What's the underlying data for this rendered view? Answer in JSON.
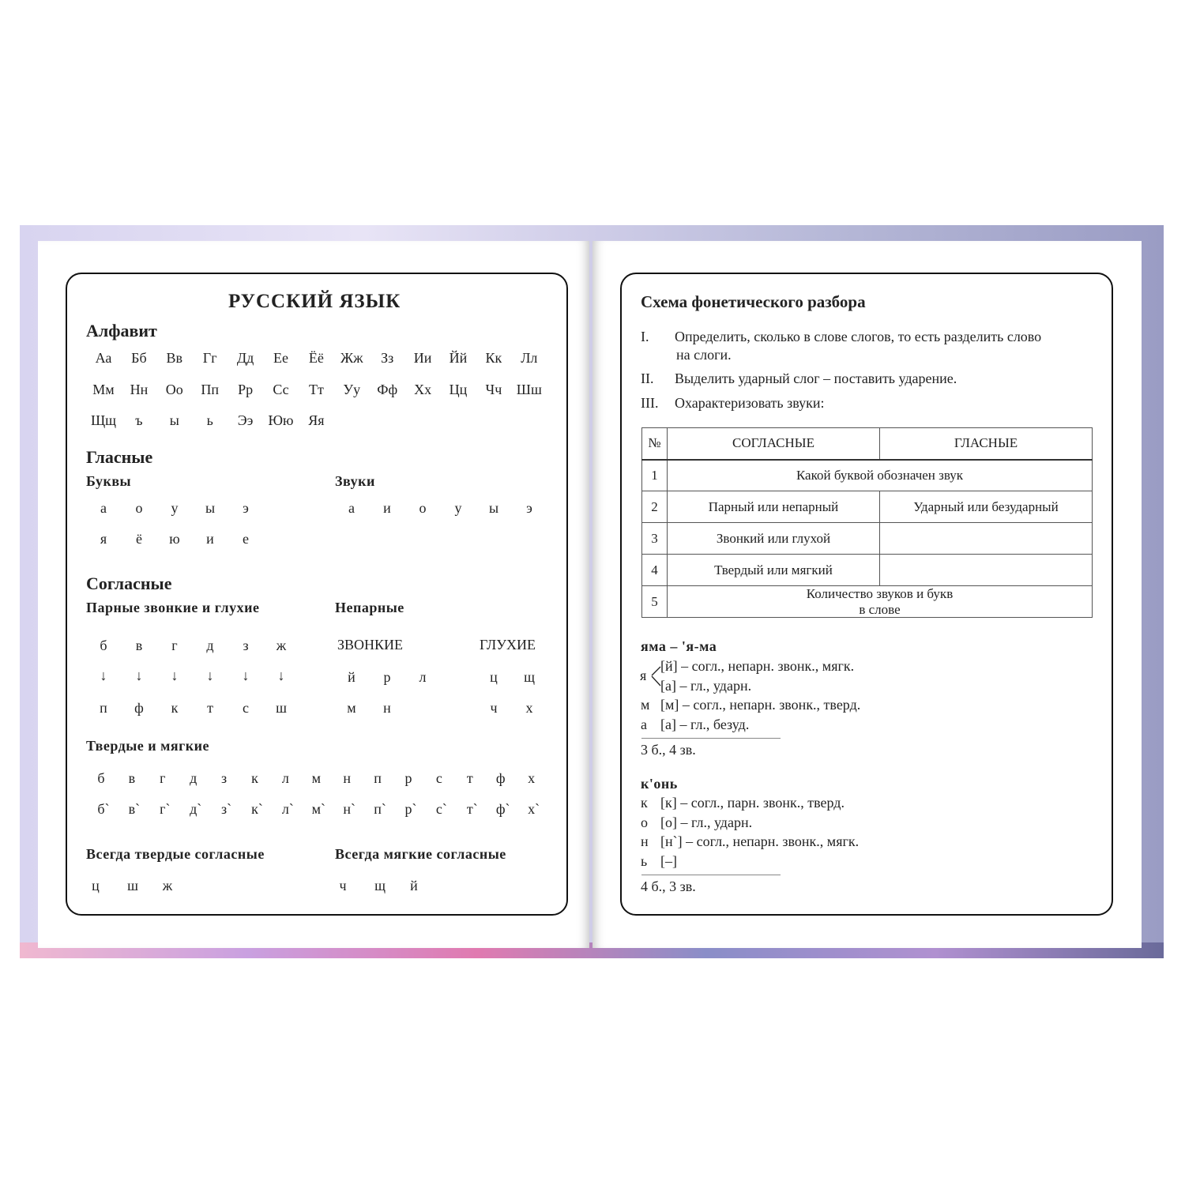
{
  "left": {
    "title": "РУССКИЙ ЯЗЫК",
    "alphabet": {
      "heading": "Алфавит",
      "rows": [
        [
          "Аа",
          "Бб",
          "Вв",
          "Гг",
          "Дд",
          "Ее",
          "Ёё",
          "Жж",
          "Зз",
          "Ии",
          "Йй",
          "Кк",
          "Лл"
        ],
        [
          "Мм",
          "Нн",
          "Оо",
          "Пп",
          "Рр",
          "Сс",
          "Тт",
          "Уу",
          "Фф",
          "Хх",
          "Цц",
          "Чч",
          "Шш"
        ],
        [
          "Щщ",
          "ъ",
          "ы",
          "ь",
          "Ээ",
          "Юю",
          "Яя"
        ]
      ]
    },
    "vowels": {
      "heading": "Гласные",
      "letters_label": "Буквы",
      "letters": [
        [
          "а",
          "о",
          "у",
          "ы",
          "э"
        ],
        [
          "я",
          "ё",
          "ю",
          "и",
          "е"
        ]
      ],
      "sounds_label": "Звуки",
      "sounds": [
        "а",
        "и",
        "о",
        "у",
        "ы",
        "э"
      ]
    },
    "consonants": {
      "heading": "Согласные",
      "paired_label": "Парные звонкие и глухие",
      "paired_voiced": [
        "б",
        "в",
        "г",
        "д",
        "з",
        "ж"
      ],
      "arrow": "↓",
      "paired_voiceless": [
        "п",
        "ф",
        "к",
        "т",
        "с",
        "ш"
      ],
      "unpaired_label": "Непарные",
      "voiced_label": "ЗВОНКИЕ",
      "voiceless_label": "ГЛУХИЕ",
      "unpaired_voiced": [
        [
          "й",
          "р",
          "л"
        ],
        [
          "м",
          "н"
        ]
      ],
      "unpaired_voiceless": [
        [
          "ц",
          "щ"
        ],
        [
          "ч",
          "х"
        ]
      ]
    },
    "hard_soft": {
      "heading": "Твердые и мягкие",
      "hard": [
        "б",
        "в",
        "г",
        "д",
        "з",
        "к",
        "л",
        "м",
        "н",
        "п",
        "р",
        "с",
        "т",
        "ф",
        "х"
      ],
      "soft": [
        "б`",
        "в`",
        "г`",
        "д`",
        "з`",
        "к`",
        "л`",
        "м`",
        "н`",
        "п`",
        "р`",
        "с`",
        "т`",
        "ф`",
        "х`"
      ]
    },
    "always_hard": {
      "heading": "Всегда твердые согласные",
      "letters": [
        "ц",
        "ш",
        "ж"
      ]
    },
    "always_soft": {
      "heading": "Всегда мягкие согласные",
      "letters": [
        "ч",
        "щ",
        "й"
      ]
    }
  },
  "right": {
    "title": "Схема фонетического разбора",
    "steps": [
      {
        "num": "I.",
        "text": "Определить, сколько в слове слогов,  то есть разделить слово",
        "text2": "на слоги."
      },
      {
        "num": "II.",
        "text": "Выделить ударный слог – поставить ударение."
      },
      {
        "num": "III.",
        "text": "Охарактеризовать звуки:"
      }
    ],
    "table": {
      "headers": [
        "№",
        "СОГЛАСНЫЕ",
        "ГЛАСНЫЕ"
      ],
      "rows": [
        {
          "n": "1",
          "full": "Какой буквой обозначен звук"
        },
        {
          "n": "2",
          "c": "Парный или непарный",
          "v": "Ударный или безударный"
        },
        {
          "n": "3",
          "c": "Звонкий или глухой",
          "v": ""
        },
        {
          "n": "4",
          "c": "Твердый или мягкий",
          "v": ""
        },
        {
          "n": "5",
          "full": "Количество звуков и букв",
          "full2": "в слове"
        }
      ]
    },
    "example1": {
      "word": "яма – 'я-ма",
      "branch_letter": "я",
      "lines": [
        {
          "l": "",
          "s": "[й] – согл., непарн. звонк., мягк."
        },
        {
          "l": "",
          "s": "[а] – гл., ударн."
        },
        {
          "l": "м",
          "s": "[м] – согл., непарн. звонк., тверд."
        },
        {
          "l": "а",
          "s": "[а] – гл., безуд."
        }
      ],
      "total": "3 б., 4 зв."
    },
    "example2": {
      "word": "к'онь",
      "lines": [
        {
          "l": "к",
          "s": "[к] – согл., парн. звонк., тверд."
        },
        {
          "l": "о",
          "s": "[о] – гл., ударн."
        },
        {
          "l": "н",
          "s": "[н`] – согл., непарн. звонк., мягк."
        },
        {
          "l": "ь",
          "s": "[–]"
        }
      ],
      "total": "4 б., 3 зв."
    }
  }
}
